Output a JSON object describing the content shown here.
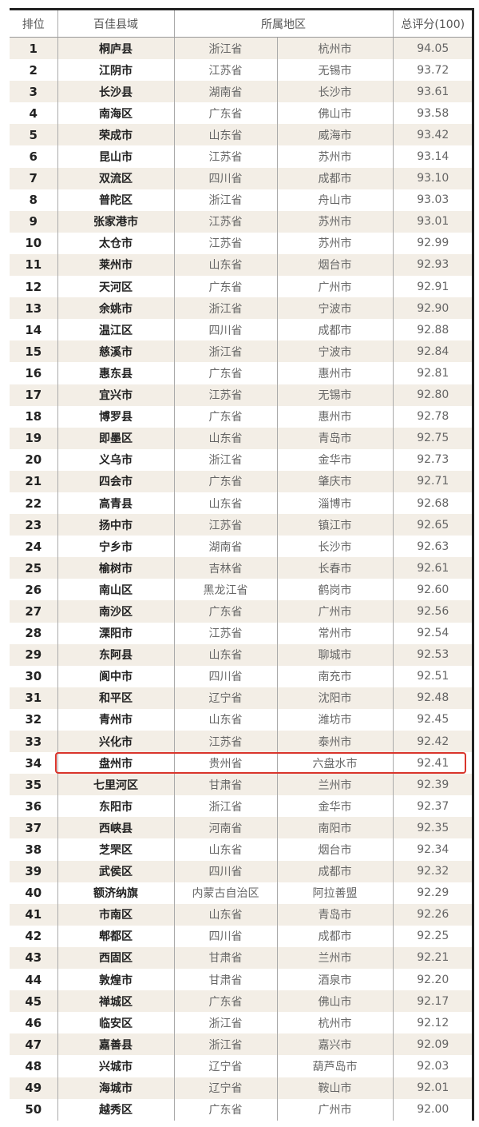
{
  "headers": {
    "rank": "排位",
    "county": "百佳县域",
    "region": "所属地区",
    "score": "总评分(100)"
  },
  "highlight_color": "#d9352c",
  "highlighted_rank": 34,
  "rows": [
    [
      "1",
      "桐庐县",
      "浙江省",
      "杭州市",
      "94.05"
    ],
    [
      "2",
      "江阴市",
      "江苏省",
      "无锡市",
      "93.72"
    ],
    [
      "3",
      "长沙县",
      "湖南省",
      "长沙市",
      "93.61"
    ],
    [
      "4",
      "南海区",
      "广东省",
      "佛山市",
      "93.58"
    ],
    [
      "5",
      "荣成市",
      "山东省",
      "威海市",
      "93.42"
    ],
    [
      "6",
      "昆山市",
      "江苏省",
      "苏州市",
      "93.14"
    ],
    [
      "7",
      "双流区",
      "四川省",
      "成都市",
      "93.10"
    ],
    [
      "8",
      "普陀区",
      "浙江省",
      "舟山市",
      "93.03"
    ],
    [
      "9",
      "张家港市",
      "江苏省",
      "苏州市",
      "93.01"
    ],
    [
      "10",
      "太仓市",
      "江苏省",
      "苏州市",
      "92.99"
    ],
    [
      "11",
      "莱州市",
      "山东省",
      "烟台市",
      "92.93"
    ],
    [
      "12",
      "天河区",
      "广东省",
      "广州市",
      "92.91"
    ],
    [
      "13",
      "余姚市",
      "浙江省",
      "宁波市",
      "92.90"
    ],
    [
      "14",
      "温江区",
      "四川省",
      "成都市",
      "92.88"
    ],
    [
      "15",
      "慈溪市",
      "浙江省",
      "宁波市",
      "92.84"
    ],
    [
      "16",
      "惠东县",
      "广东省",
      "惠州市",
      "92.81"
    ],
    [
      "17",
      "宜兴市",
      "江苏省",
      "无锡市",
      "92.80"
    ],
    [
      "18",
      "博罗县",
      "广东省",
      "惠州市",
      "92.78"
    ],
    [
      "19",
      "即墨区",
      "山东省",
      "青岛市",
      "92.75"
    ],
    [
      "20",
      "义乌市",
      "浙江省",
      "金华市",
      "92.73"
    ],
    [
      "21",
      "四会市",
      "广东省",
      "肇庆市",
      "92.71"
    ],
    [
      "22",
      "高青县",
      "山东省",
      "淄博市",
      "92.68"
    ],
    [
      "23",
      "扬中市",
      "江苏省",
      "镇江市",
      "92.65"
    ],
    [
      "24",
      "宁乡市",
      "湖南省",
      "长沙市",
      "92.63"
    ],
    [
      "25",
      "榆树市",
      "吉林省",
      "长春市",
      "92.61"
    ],
    [
      "26",
      "南山区",
      "黑龙江省",
      "鹤岗市",
      "92.60"
    ],
    [
      "27",
      "南沙区",
      "广东省",
      "广州市",
      "92.56"
    ],
    [
      "28",
      "溧阳市",
      "江苏省",
      "常州市",
      "92.54"
    ],
    [
      "29",
      "东阿县",
      "山东省",
      "聊城市",
      "92.53"
    ],
    [
      "30",
      "阆中市",
      "四川省",
      "南充市",
      "92.51"
    ],
    [
      "31",
      "和平区",
      "辽宁省",
      "沈阳市",
      "92.48"
    ],
    [
      "32",
      "青州市",
      "山东省",
      "潍坊市",
      "92.45"
    ],
    [
      "33",
      "兴化市",
      "江苏省",
      "泰州市",
      "92.42"
    ],
    [
      "34",
      "盘州市",
      "贵州省",
      "六盘水市",
      "92.41"
    ],
    [
      "35",
      "七里河区",
      "甘肃省",
      "兰州市",
      "92.39"
    ],
    [
      "36",
      "东阳市",
      "浙江省",
      "金华市",
      "92.37"
    ],
    [
      "37",
      "西峡县",
      "河南省",
      "南阳市",
      "92.35"
    ],
    [
      "38",
      "芝罘区",
      "山东省",
      "烟台市",
      "92.34"
    ],
    [
      "39",
      "武侯区",
      "四川省",
      "成都市",
      "92.32"
    ],
    [
      "40",
      "额济纳旗",
      "内蒙古自治区",
      "阿拉善盟",
      "92.29"
    ],
    [
      "41",
      "市南区",
      "山东省",
      "青岛市",
      "92.26"
    ],
    [
      "42",
      "郫都区",
      "四川省",
      "成都市",
      "92.25"
    ],
    [
      "43",
      "西固区",
      "甘肃省",
      "兰州市",
      "92.21"
    ],
    [
      "44",
      "敦煌市",
      "甘肃省",
      "酒泉市",
      "92.20"
    ],
    [
      "45",
      "禅城区",
      "广东省",
      "佛山市",
      "92.17"
    ],
    [
      "46",
      "临安区",
      "浙江省",
      "杭州市",
      "92.12"
    ],
    [
      "47",
      "嘉善县",
      "浙江省",
      "嘉兴市",
      "92.09"
    ],
    [
      "48",
      "兴城市",
      "辽宁省",
      "葫芦岛市",
      "92.03"
    ],
    [
      "49",
      "海城市",
      "辽宁省",
      "鞍山市",
      "92.01"
    ],
    [
      "50",
      "越秀区",
      "广东省",
      "广州市",
      "92.00"
    ]
  ]
}
